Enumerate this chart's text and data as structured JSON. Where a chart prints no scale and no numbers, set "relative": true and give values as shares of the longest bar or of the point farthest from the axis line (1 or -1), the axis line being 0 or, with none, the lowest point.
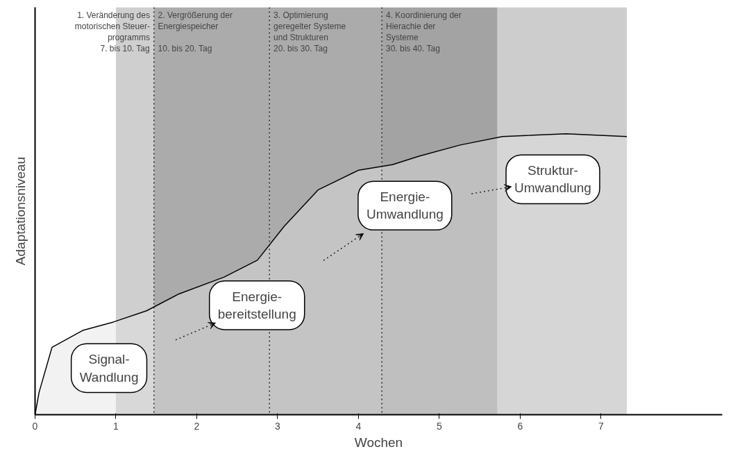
{
  "chart_data": {
    "type": "area",
    "relative": true,
    "xlabel": "Wochen",
    "ylabel": "Adaptationsniveau",
    "x": [
      0,
      0.05,
      0.21,
      0.59,
      0.97,
      1.38,
      1.78,
      2.34,
      2.75,
      3.08,
      3.5,
      4.0,
      4.42,
      4.75,
      5.26,
      5.78,
      6.57,
      7.32
    ],
    "values": [
      0,
      0.08,
      0.24,
      0.3,
      0.33,
      0.37,
      0.43,
      0.49,
      0.55,
      0.67,
      0.8,
      0.87,
      0.89,
      0.92,
      0.96,
      0.99,
      1.0,
      0.99
    ],
    "color": "#e3e3e3",
    "xlim": [
      0,
      8.5
    ],
    "xticks": [
      0,
      1,
      2,
      3,
      4,
      5,
      6,
      7
    ],
    "grid": false,
    "tick_labels": "x",
    "bands": [
      {
        "axis": "x",
        "from": 1.0,
        "to": 1.47,
        "label": "1. Veränderung des\nmotorischen Steuer-\nprogramms\n7. bis 10. Tag",
        "color": "#cfcfcf"
      },
      {
        "axis": "x",
        "from": 1.47,
        "to": 2.9,
        "label": "2. Vergrößerung der\nEnergiespeicher\n\n10. bis 20. Tag",
        "color": "#ababab"
      },
      {
        "axis": "x",
        "from": 2.9,
        "to": 4.29,
        "label": "3. Optimierung\ngeregelter Systeme\nund Strukturen\n20. bis 30. Tag",
        "color": "#ababab"
      },
      {
        "axis": "x",
        "from": 4.29,
        "to": 5.72,
        "label": "4. Koordinierung der\nHierachie der\nSysteme\n30. bis 40. Tag",
        "color": "#a3a3a3"
      },
      {
        "axis": "x",
        "from": 5.72,
        "to": 7.32,
        "color": "#cdcdcd"
      }
    ],
    "ref_lines": [
      {
        "axis": "x",
        "value": 1.47,
        "line_style": "dotted"
      },
      {
        "axis": "x",
        "value": 2.9,
        "line_style": "dotted"
      },
      {
        "axis": "x",
        "value": 4.29,
        "line_style": "dotted"
      }
    ],
    "annotations": [
      "Signal-\nWandlung",
      "Energie-\nbereitstellung",
      "Energie-\nUmwandlung",
      "Struktur-\nUmwandlung"
    ]
  }
}
